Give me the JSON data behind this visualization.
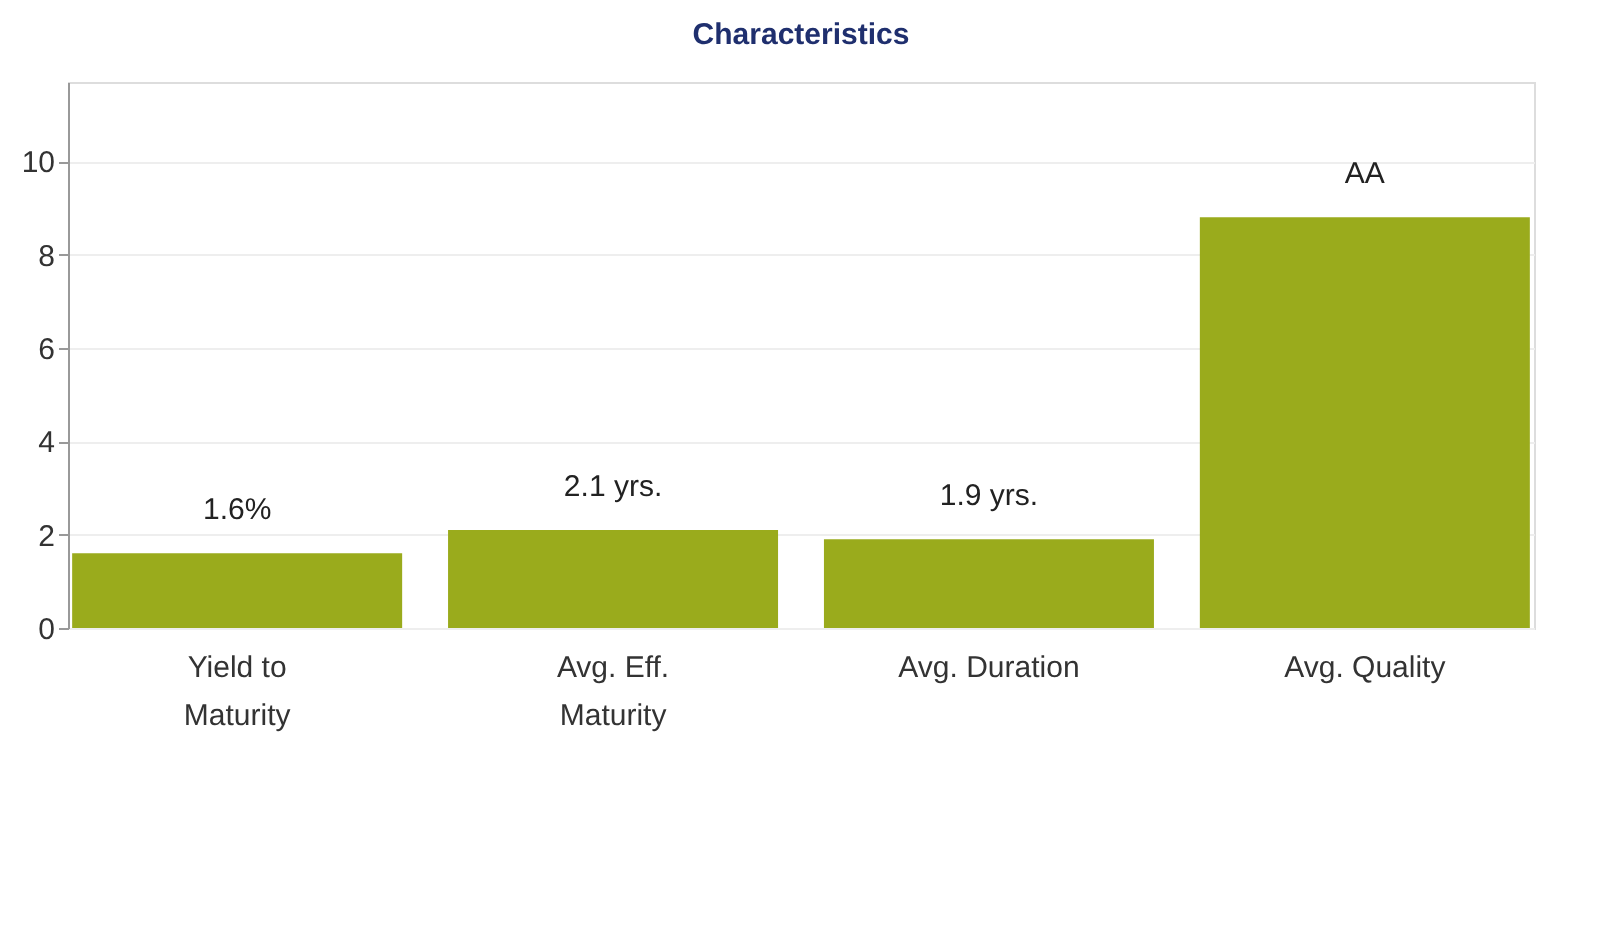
{
  "chart_data": {
    "type": "bar",
    "title": "Characteristics",
    "categories": [
      "Yield to\nMaturity",
      "Avg. Eff.\nMaturity",
      "Avg. Duration",
      "Avg. Quality"
    ],
    "series": [
      {
        "color": "#9aab1c",
        "values": [
          1.6,
          2.1,
          1.9,
          8.8
        ],
        "value_labels": [
          "1.6%",
          "2.1 yrs.",
          "1.9 yrs.",
          "AA"
        ]
      }
    ],
    "ylim": [
      0,
      11.7
    ],
    "yticks": [
      0,
      2,
      4,
      6,
      8,
      10
    ],
    "grid": "y",
    "legend": false
  }
}
